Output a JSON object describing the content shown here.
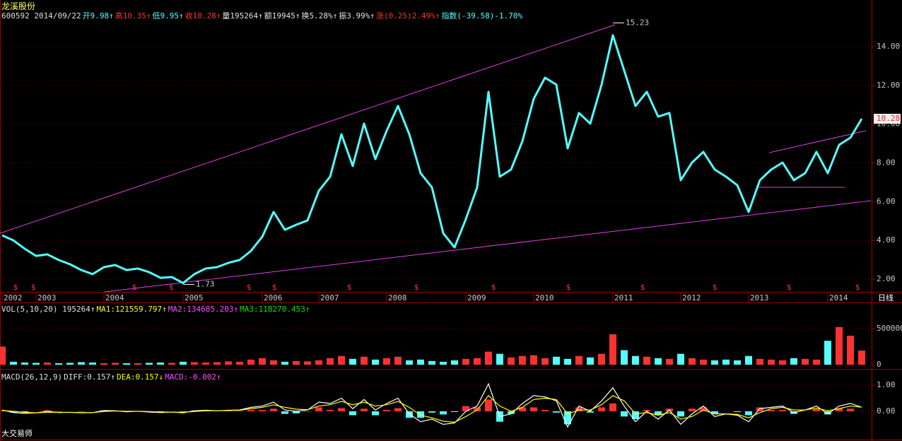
{
  "header": {
    "title": "龙溪股份",
    "quote": [
      {
        "text": "600592 2014/09/22",
        "color": "#e0e0e0"
      },
      {
        "text": "开9.98↑",
        "color": "#54ffff"
      },
      {
        "text": "高10.35↑",
        "color": "#ff3232"
      },
      {
        "text": "低9.95↑",
        "color": "#54ffff"
      },
      {
        "text": "收10.28↑",
        "color": "#ff3232"
      },
      {
        "text": "量195264↑",
        "color": "#e0e0e0"
      },
      {
        "text": "额19945↑",
        "color": "#e0e0e0"
      },
      {
        "text": "换5.28%↑",
        "color": "#e0e0e0"
      },
      {
        "text": "振3.99%↑",
        "color": "#e0e0e0"
      },
      {
        "text": "涨(0.25)2.49%↑",
        "color": "#ff3232"
      },
      {
        "text": "指数(-39.58)-1.70%",
        "color": "#54ffff"
      }
    ]
  },
  "period_label": "日线",
  "footer": "大交易师",
  "dividend_symbol": "$",
  "chart_data": [
    {
      "type": "line",
      "color": "#54ffff",
      "grid": true,
      "categories": [
        "2002",
        null,
        null,
        "2003",
        null,
        null,
        null,
        null,
        null,
        "2004",
        null,
        null,
        null,
        null,
        null,
        null,
        "2005",
        null,
        null,
        null,
        null,
        null,
        null,
        "2006",
        null,
        null,
        null,
        null,
        "2007",
        null,
        null,
        null,
        null,
        null,
        "2008",
        null,
        null,
        null,
        null,
        null,
        null,
        "2009",
        null,
        null,
        null,
        null,
        null,
        "2010",
        null,
        null,
        null,
        null,
        null,
        null,
        "2011",
        null,
        null,
        null,
        null,
        null,
        "2012",
        null,
        null,
        null,
        null,
        null,
        "2013",
        null,
        null,
        null,
        null,
        null,
        null,
        "2014",
        null,
        null,
        null
      ],
      "values": [
        4.26,
        4.0,
        3.57,
        3.2,
        3.28,
        2.99,
        2.77,
        2.47,
        2.26,
        2.62,
        2.73,
        2.47,
        2.55,
        2.36,
        2.07,
        2.11,
        1.8,
        2.26,
        2.55,
        2.62,
        2.84,
        2.99,
        3.46,
        4.19,
        5.47,
        4.55,
        4.81,
        5.03,
        6.56,
        7.29,
        9.48,
        7.84,
        10.03,
        8.2,
        9.66,
        10.94,
        9.48,
        7.47,
        6.74,
        4.37,
        3.64,
        5.1,
        6.74,
        11.67,
        7.29,
        7.66,
        9.12,
        11.31,
        12.4,
        12.04,
        8.75,
        10.58,
        10.03,
        12.04,
        14.59,
        12.77,
        10.94,
        11.67,
        10.39,
        10.58,
        7.11,
        8.02,
        8.57,
        7.66,
        7.29,
        6.85,
        5.47,
        7.11,
        7.66,
        8.02,
        7.11,
        7.47,
        8.57,
        7.47,
        8.93,
        9.3,
        10.28
      ],
      "ylim": [
        1.38,
        15.68
      ],
      "yticks": [
        {
          "value": 2,
          "label": "2.00"
        },
        {
          "value": 4,
          "label": "4.00"
        },
        {
          "value": 6,
          "label": "6.00"
        },
        {
          "value": 8,
          "label": "8.00"
        },
        {
          "value": 10,
          "label": "10.00"
        },
        {
          "value": 12,
          "label": "12.00"
        },
        {
          "value": 14,
          "label": "14.00"
        }
      ],
      "high": 15.23,
      "low": 1.73,
      "last": 10.28
    },
    {
      "type": "bar",
      "up_color": "#ff3232",
      "down_color": "#54ffff",
      "grid": true,
      "legend": [
        {
          "text": "VOL(5,10,20) 195264↑",
          "color": "#e0e0e0"
        },
        {
          "text": "MA1:121559.797↑",
          "color": "#ffff00"
        },
        {
          "text": "MA2:134685.203↑",
          "color": "#ff50ff"
        },
        {
          "text": "MA3:118270.453↑",
          "color": "#00e600"
        }
      ],
      "values": [
        250000,
        40000,
        30000,
        25000,
        30000,
        20000,
        25000,
        35000,
        30000,
        20000,
        25000,
        20000,
        20000,
        25000,
        30000,
        25000,
        40000,
        35000,
        30000,
        35000,
        45000,
        40000,
        70000,
        90000,
        60000,
        40000,
        50000,
        45000,
        60000,
        90000,
        120000,
        80000,
        110000,
        70000,
        90000,
        110000,
        60000,
        70000,
        50000,
        40000,
        60000,
        80000,
        90000,
        180000,
        150000,
        100000,
        120000,
        130000,
        90000,
        110000,
        80000,
        120000,
        100000,
        150000,
        420000,
        200000,
        120000,
        110000,
        90000,
        80000,
        150000,
        90000,
        70000,
        60000,
        70000,
        60000,
        120000,
        80000,
        70000,
        60000,
        90000,
        80000,
        70000,
        330000,
        520000,
        400000,
        195264
      ],
      "ylim": [
        0,
        820000
      ],
      "yticks": [
        0,
        500000
      ]
    },
    {
      "type": "macd",
      "up_color": "#ff3232",
      "down_color": "#54ffff",
      "grid": true,
      "legend": [
        {
          "text": "MACD(26,12,9)",
          "color": "#e0e0e0"
        },
        {
          "text": "DIFF:0.157↑",
          "color": "#e0e0e0"
        },
        {
          "text": "DEA:0.157↓",
          "color": "#ffff00"
        },
        {
          "text": "MACD:-0.002↑",
          "color": "#ff50ff"
        }
      ],
      "ylim": [
        -1.03,
        1.46
      ],
      "yticks": [
        {
          "value": 1,
          "label": "1.00"
        },
        {
          "value": 0,
          "label": "0.00"
        }
      ],
      "histogram": [
        0.02,
        -0.05,
        -0.04,
        0,
        0.04,
        -0.01,
        0,
        -0.01,
        0,
        0.04,
        0.01,
        -0.02,
        0,
        -0.02,
        -0.02,
        0,
        -0.02,
        0.03,
        0.02,
        0,
        0.01,
        0.01,
        0.05,
        0.05,
        0.1,
        -0.1,
        -0.08,
        -0.01,
        0.15,
        0.05,
        0.12,
        -0.15,
        0.1,
        -0.15,
        0.05,
        0.12,
        -0.25,
        -0.25,
        -0.05,
        -0.12,
        -0.03,
        0.2,
        0.15,
        0.45,
        -0.4,
        -0.1,
        0.15,
        0.15,
        0.05,
        -0.05,
        -0.5,
        0.15,
        -0.05,
        0.15,
        0.3,
        -0.2,
        -0.3,
        0.05,
        -0.15,
        0.1,
        -0.2,
        0.1,
        0.15,
        -0.1,
        0,
        -0.03,
        -0.15,
        0.15,
        0.05,
        0.05,
        -0.1,
        0,
        0.08,
        -0.12,
        0.1,
        0.1,
        -0.002
      ],
      "series": [
        {
          "color": "#ffffff",
          "values": [
            0.05,
            -0.05,
            -0.08,
            -0.06,
            0,
            -0.05,
            -0.04,
            -0.06,
            -0.05,
            0.03,
            0.02,
            -0.02,
            0,
            -0.03,
            -0.05,
            -0.03,
            -0.06,
            0.02,
            0.04,
            0.02,
            0.04,
            0.05,
            0.15,
            0.2,
            0.35,
            0.05,
            0,
            0.05,
            0.35,
            0.3,
            0.5,
            0.1,
            0.45,
            0.05,
            0.3,
            0.5,
            -0.1,
            -0.4,
            -0.3,
            -0.5,
            -0.45,
            0,
            0.2,
            1.05,
            -0.2,
            -0.1,
            0.3,
            0.6,
            0.55,
            0.4,
            -0.6,
            0.2,
            0,
            0.4,
            0.9,
            0.2,
            -0.4,
            0,
            -0.3,
            0.05,
            -0.5,
            -0.1,
            0.2,
            -0.2,
            -0.1,
            -0.15,
            -0.4,
            0.1,
            0.15,
            0.2,
            -0.05,
            0.05,
            0.2,
            -0.1,
            0.2,
            0.3,
            0.157
          ]
        },
        {
          "color": "#ffff00",
          "values": [
            0.03,
            0,
            -0.04,
            -0.06,
            -0.04,
            -0.04,
            -0.04,
            -0.05,
            -0.05,
            -0.01,
            0.01,
            0,
            0,
            -0.01,
            -0.03,
            -0.03,
            -0.04,
            -0.01,
            0.02,
            0.02,
            0.03,
            0.04,
            0.1,
            0.15,
            0.25,
            0.15,
            0.08,
            0.06,
            0.2,
            0.25,
            0.38,
            0.25,
            0.35,
            0.2,
            0.25,
            0.38,
            0.15,
            -0.15,
            -0.25,
            -0.38,
            -0.42,
            -0.2,
            0.05,
            0.6,
            0.2,
            0,
            0.15,
            0.45,
            0.5,
            0.45,
            -0.1,
            0.05,
            0.05,
            0.25,
            0.6,
            0.4,
            -0.1,
            -0.05,
            -0.15,
            -0.05,
            -0.3,
            -0.2,
            0.05,
            -0.1,
            -0.1,
            -0.12,
            -0.25,
            -0.05,
            0.1,
            0.15,
            0.05,
            0.05,
            0.12,
            0.02,
            0.1,
            0.2,
            0.157
          ]
        }
      ]
    }
  ]
}
